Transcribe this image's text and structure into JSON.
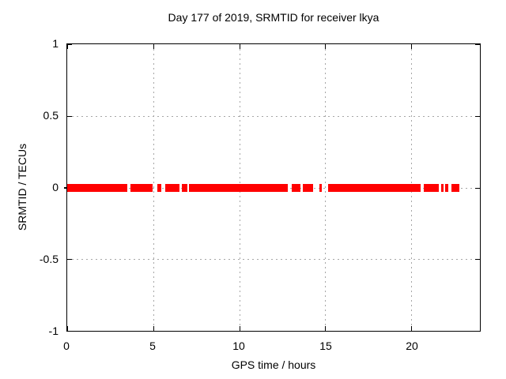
{
  "title": "Day 177 of 2019, SRMTID for receiver lkya",
  "colors": {
    "background": "#ffffff",
    "border": "#000000",
    "grid": "#a6a6a6",
    "data": "#ff0000",
    "text": "#000000"
  },
  "chart_data": {
    "type": "scatter",
    "title": "Day 177 of 2019, SRMTID for receiver lkya",
    "xlabel": "GPS time / hours",
    "ylabel": "SRMTID / TECUs",
    "xlim": [
      0,
      24
    ],
    "ylim": [
      -1,
      1
    ],
    "xticks": [
      0,
      5,
      10,
      15,
      20
    ],
    "yticks": [
      1,
      0.5,
      0,
      -0.5,
      -1
    ],
    "grid": true,
    "legend": "none",
    "series": [
      {
        "name": "SRMTID",
        "color": "#ff0000",
        "marker": "point",
        "y_value": 0,
        "band_halfwidth_tecus": 0.03,
        "segments_hours": [
          [
            0.0,
            3.51
          ],
          [
            3.67,
            4.98
          ],
          [
            5.23,
            5.48
          ],
          [
            5.69,
            6.54
          ],
          [
            6.65,
            7.0
          ],
          [
            7.09,
            12.85
          ],
          [
            13.05,
            13.58
          ],
          [
            13.71,
            14.3
          ],
          [
            14.68,
            14.81
          ],
          [
            15.16,
            20.56
          ],
          [
            20.74,
            21.61
          ],
          [
            21.73,
            21.87
          ],
          [
            21.96,
            22.14
          ],
          [
            22.35,
            22.81
          ]
        ]
      }
    ]
  }
}
